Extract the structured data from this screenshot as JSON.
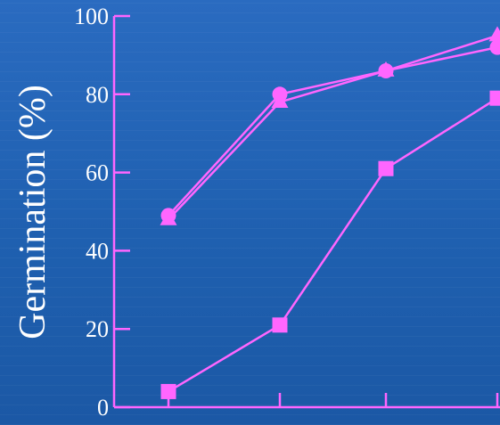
{
  "chart_data": {
    "type": "line",
    "title": "",
    "xlabel": "",
    "ylabel": "Germination (%)",
    "ylim": [
      0,
      100
    ],
    "yticks": [
      0,
      20,
      40,
      60,
      80,
      100
    ],
    "x": [
      1,
      2,
      3,
      4
    ],
    "grid": false,
    "legend": "none",
    "line_color": "#ff66ff",
    "axis_color": "#ff66ff",
    "series": [
      {
        "marker": "circle",
        "values": [
          49,
          80,
          86,
          92
        ]
      },
      {
        "marker": "triangle",
        "values": [
          48,
          78,
          86,
          95
        ]
      },
      {
        "marker": "square",
        "values": [
          4,
          21,
          61,
          79
        ]
      }
    ]
  }
}
